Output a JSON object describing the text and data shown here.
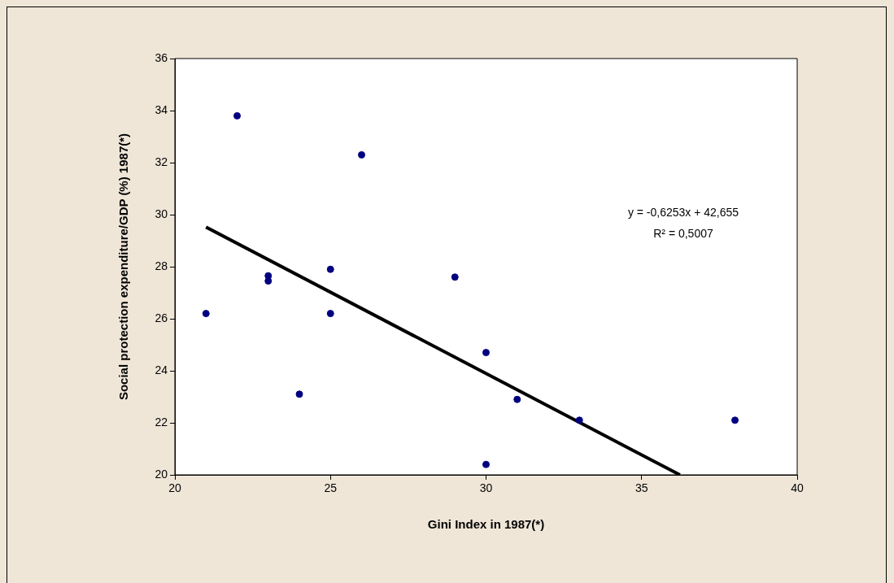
{
  "chart_data": {
    "type": "scatter",
    "xlabel": "Gini Index in 1987(*)",
    "ylabel": "Social protection expenditure/GDP (%) 1987(*)",
    "x": [
      21,
      22,
      23,
      23,
      24,
      25,
      25,
      26,
      29,
      30,
      30,
      31,
      33,
      38
    ],
    "series": [
      {
        "color": "#000080",
        "values": [
          26.2,
          33.8,
          27.65,
          27.45,
          23.1,
          27.9,
          26.2,
          32.3,
          27.6,
          24.7,
          20.4,
          22.9,
          22.1,
          22.1
        ]
      },
      {
        "type": "line",
        "color": "#000000",
        "x": [
          21,
          36.23
        ],
        "values": [
          29.52,
          20
        ],
        "marker": "none",
        "line_style": "solid"
      }
    ],
    "xlim": [
      20,
      40
    ],
    "xticks": [
      20,
      25,
      30,
      35,
      40
    ],
    "ylim": [
      20,
      36
    ],
    "yticks": [
      20,
      22,
      24,
      26,
      28,
      30,
      32,
      34,
      36
    ],
    "grid": false,
    "legend": false,
    "marker": "circle",
    "annotations": [
      "y = -0,6253x + 42,655",
      "R² = 0,5007"
    ]
  }
}
